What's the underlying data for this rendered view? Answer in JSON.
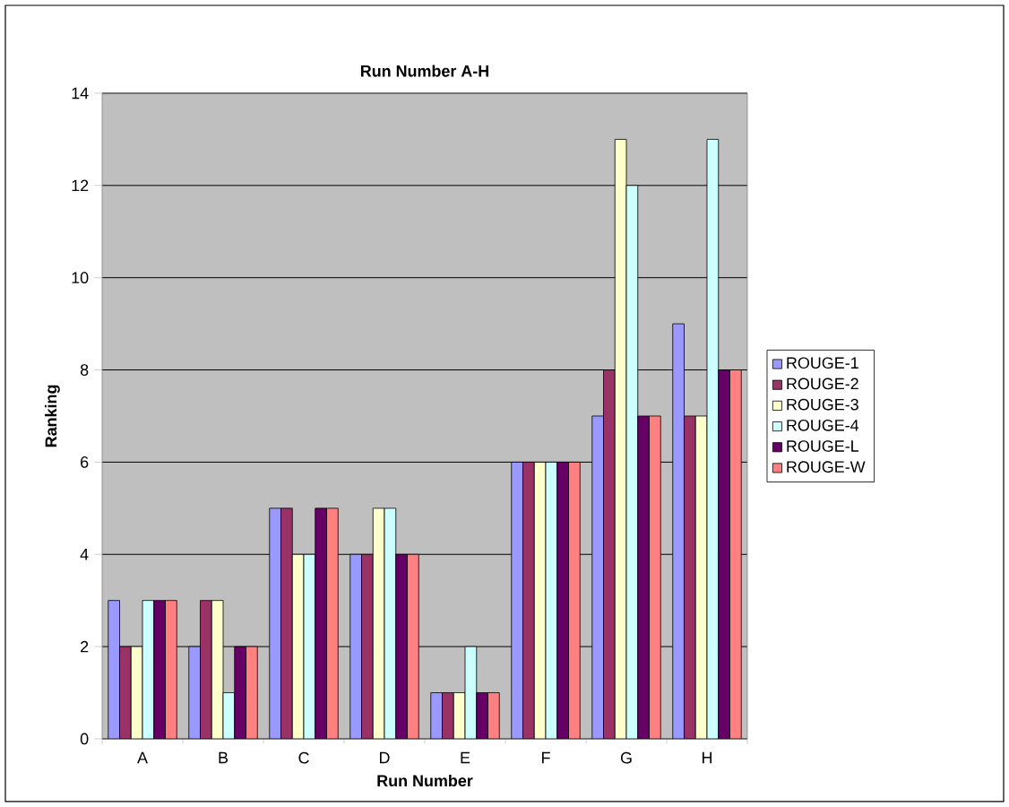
{
  "chart_data": {
    "type": "bar",
    "title": "Run Number A-H",
    "xlabel": "Run Number",
    "ylabel": "Ranking",
    "categories": [
      "A",
      "B",
      "C",
      "D",
      "E",
      "F",
      "G",
      "H"
    ],
    "series": [
      {
        "name": "ROUGE-1",
        "color": "#9999ff",
        "values": [
          3,
          2,
          5,
          4,
          1,
          6,
          7,
          9
        ]
      },
      {
        "name": "ROUGE-2",
        "color": "#993366",
        "values": [
          2,
          3,
          5,
          4,
          1,
          6,
          8,
          7
        ]
      },
      {
        "name": "ROUGE-3",
        "color": "#ffffcc",
        "values": [
          2,
          3,
          4,
          5,
          1,
          6,
          13,
          7
        ]
      },
      {
        "name": "ROUGE-4",
        "color": "#ccffff",
        "values": [
          3,
          1,
          4,
          5,
          2,
          6,
          12,
          13
        ]
      },
      {
        "name": "ROUGE-L",
        "color": "#660066",
        "values": [
          3,
          2,
          5,
          4,
          1,
          6,
          7,
          8
        ]
      },
      {
        "name": "ROUGE-W",
        "color": "#ff8080",
        "values": [
          3,
          2,
          5,
          4,
          1,
          6,
          7,
          8
        ]
      }
    ],
    "ylim": [
      0,
      14
    ],
    "yticks": [
      0,
      2,
      4,
      6,
      8,
      10,
      12,
      14
    ],
    "grid": "y",
    "legend": "right"
  }
}
